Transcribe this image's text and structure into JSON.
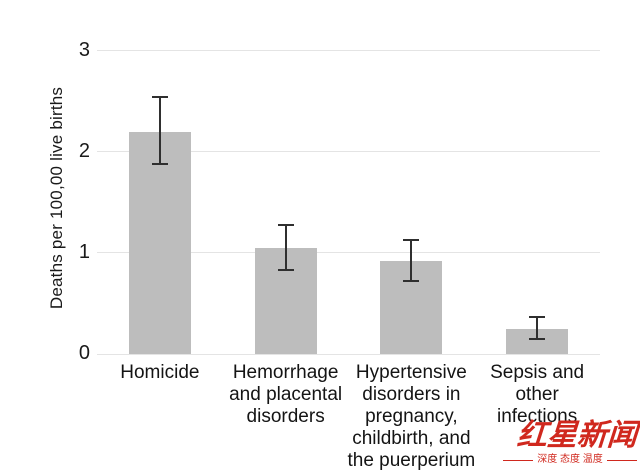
{
  "chart_data": {
    "type": "bar",
    "title": "",
    "xlabel": "",
    "ylabel": "Deaths per 100,00 live births",
    "ylim": [
      0,
      3
    ],
    "yticks": [
      0,
      1,
      2,
      3
    ],
    "grid": "horizontal",
    "legend": "none",
    "bar_color": "#bdbdbd",
    "error_bar_color": "#2f2f2f",
    "gridline_color": "#e4e4e4",
    "categories": [
      {
        "name": "Homicide",
        "label_lines": [
          "Homicide"
        ],
        "value": 2.2,
        "ci_low": 1.87,
        "ci_high": 2.55
      },
      {
        "name": "Hemorrhage and placental disorders",
        "label_lines": [
          "Hemorrhage",
          "and placental",
          "disorders"
        ],
        "value": 1.05,
        "ci_low": 0.82,
        "ci_high": 1.29
      },
      {
        "name": "Hypertensive disorders in pregnancy, childbirth, and the puerperium",
        "label_lines": [
          "Hypertensive",
          "disorders in",
          "pregnancy,",
          "childbirth, and",
          "the puerperium"
        ],
        "value": 0.92,
        "ci_low": 0.71,
        "ci_high": 1.14
      },
      {
        "name": "Sepsis and other infections",
        "label_lines": [
          "Sepsis and",
          "other",
          "infections"
        ],
        "value": 0.25,
        "ci_low": 0.14,
        "ci_high": 0.38
      }
    ]
  },
  "watermark": {
    "brand": "红星新闻",
    "tagline": "深度 态度 温度",
    "color": "#d0281e"
  }
}
